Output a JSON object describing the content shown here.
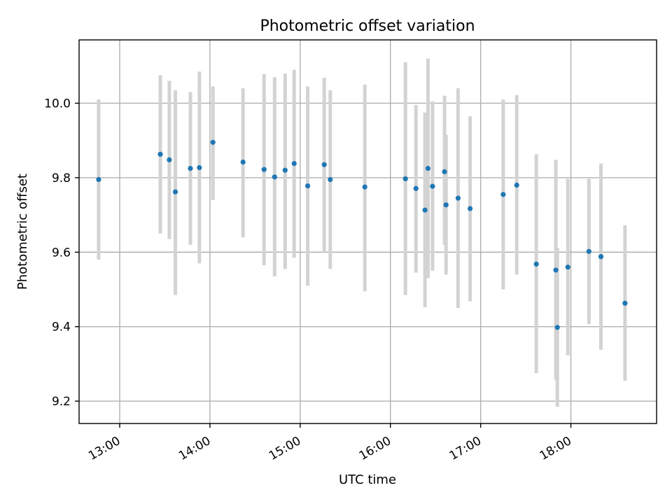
{
  "chart_data": {
    "type": "scatter",
    "title": "Photometric offset variation",
    "xlabel": "UTC time",
    "ylabel": "Photometric offset",
    "x_ticks": [
      "13:00",
      "14:00",
      "15:00",
      "16:00",
      "17:00",
      "18:00"
    ],
    "y_ticks": [
      "9.2",
      "9.4",
      "9.6",
      "9.8",
      "10.0"
    ],
    "xlim": [
      "12:33",
      "18:57"
    ],
    "ylim": [
      9.14,
      10.17
    ],
    "grid": true,
    "colors": {
      "point": "#1f77b4",
      "errorbar": "#d3d3d3"
    },
    "series": [
      {
        "points": [
          {
            "x": "12:46",
            "y": 9.795,
            "yerr_low": 9.58,
            "yerr_high": 10.01
          },
          {
            "x": "13:27",
            "y": 9.863,
            "yerr_low": 9.65,
            "yerr_high": 10.075
          },
          {
            "x": "13:33",
            "y": 9.848,
            "yerr_low": 9.635,
            "yerr_high": 10.06
          },
          {
            "x": "13:37",
            "y": 9.762,
            "yerr_low": 9.485,
            "yerr_high": 10.035
          },
          {
            "x": "13:47",
            "y": 9.825,
            "yerr_low": 9.62,
            "yerr_high": 10.03
          },
          {
            "x": "13:53",
            "y": 9.827,
            "yerr_low": 9.57,
            "yerr_high": 10.085
          },
          {
            "x": "14:02",
            "y": 9.895,
            "yerr_low": 9.74,
            "yerr_high": 10.045
          },
          {
            "x": "14:22",
            "y": 9.842,
            "yerr_low": 9.64,
            "yerr_high": 10.04
          },
          {
            "x": "14:36",
            "y": 9.822,
            "yerr_low": 9.565,
            "yerr_high": 10.078
          },
          {
            "x": "14:43",
            "y": 9.802,
            "yerr_low": 9.535,
            "yerr_high": 10.07
          },
          {
            "x": "14:50",
            "y": 9.82,
            "yerr_low": 9.555,
            "yerr_high": 10.08
          },
          {
            "x": "14:56",
            "y": 9.838,
            "yerr_low": 9.585,
            "yerr_high": 10.09
          },
          {
            "x": "15:05",
            "y": 9.778,
            "yerr_low": 9.51,
            "yerr_high": 10.045
          },
          {
            "x": "15:16",
            "y": 9.835,
            "yerr_low": 9.6,
            "yerr_high": 10.068
          },
          {
            "x": "15:20",
            "y": 9.795,
            "yerr_low": 9.555,
            "yerr_high": 10.035
          },
          {
            "x": "15:43",
            "y": 9.775,
            "yerr_low": 9.495,
            "yerr_high": 10.05
          },
          {
            "x": "16:10",
            "y": 9.797,
            "yerr_low": 9.485,
            "yerr_high": 10.11
          },
          {
            "x": "16:17",
            "y": 9.771,
            "yerr_low": 9.545,
            "yerr_high": 9.995
          },
          {
            "x": "16:23",
            "y": 9.713,
            "yerr_low": 9.452,
            "yerr_high": 9.975
          },
          {
            "x": "16:25",
            "y": 9.825,
            "yerr_low": 9.53,
            "yerr_high": 10.12
          },
          {
            "x": "16:28",
            "y": 9.777,
            "yerr_low": 9.55,
            "yerr_high": 10.005
          },
          {
            "x": "16:36",
            "y": 9.816,
            "yerr_low": 9.62,
            "yerr_high": 10.02
          },
          {
            "x": "16:37",
            "y": 9.727,
            "yerr_low": 9.54,
            "yerr_high": 9.915
          },
          {
            "x": "16:45",
            "y": 9.745,
            "yerr_low": 9.45,
            "yerr_high": 10.04
          },
          {
            "x": "16:53",
            "y": 9.717,
            "yerr_low": 9.468,
            "yerr_high": 9.965
          },
          {
            "x": "17:15",
            "y": 9.755,
            "yerr_low": 9.5,
            "yerr_high": 10.01
          },
          {
            "x": "17:24",
            "y": 9.78,
            "yerr_low": 9.54,
            "yerr_high": 10.022
          },
          {
            "x": "17:37",
            "y": 9.568,
            "yerr_low": 9.275,
            "yerr_high": 9.863
          },
          {
            "x": "17:50",
            "y": 9.552,
            "yerr_low": 9.258,
            "yerr_high": 9.848
          },
          {
            "x": "17:51",
            "y": 9.398,
            "yerr_low": 9.185,
            "yerr_high": 9.612
          },
          {
            "x": "17:58",
            "y": 9.56,
            "yerr_low": 9.323,
            "yerr_high": 9.797
          },
          {
            "x": "18:12",
            "y": 9.602,
            "yerr_low": 9.407,
            "yerr_high": 9.797
          },
          {
            "x": "18:20",
            "y": 9.588,
            "yerr_low": 9.338,
            "yerr_high": 9.838
          },
          {
            "x": "18:36",
            "y": 9.463,
            "yerr_low": 9.255,
            "yerr_high": 9.672
          }
        ]
      }
    ]
  }
}
